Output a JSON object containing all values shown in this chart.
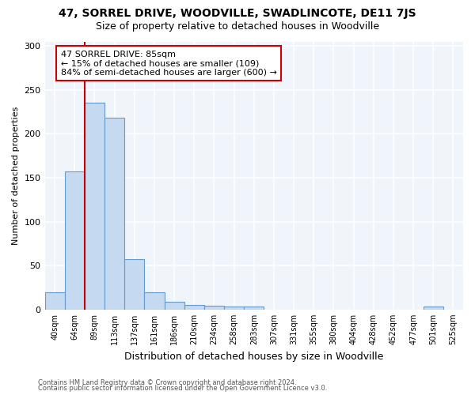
{
  "title1": "47, SORREL DRIVE, WOODVILLE, SWADLINCOTE, DE11 7JS",
  "title2": "Size of property relative to detached houses in Woodville",
  "xlabel": "Distribution of detached houses by size in Woodville",
  "ylabel": "Number of detached properties",
  "categories": [
    "40sqm",
    "64sqm",
    "89sqm",
    "113sqm",
    "137sqm",
    "161sqm",
    "186sqm",
    "210sqm",
    "234sqm",
    "258sqm",
    "283sqm",
    "307sqm",
    "331sqm",
    "355sqm",
    "380sqm",
    "404sqm",
    "428sqm",
    "452sqm",
    "477sqm",
    "501sqm",
    "525sqm"
  ],
  "values": [
    20,
    157,
    235,
    218,
    57,
    20,
    9,
    5,
    4,
    3,
    3,
    0,
    0,
    0,
    0,
    0,
    0,
    0,
    0,
    3,
    0
  ],
  "bar_color": "#c5d9f0",
  "bar_edge_color": "#6699cc",
  "vline_color": "#cc0000",
  "vline_xindex": 2,
  "annotation_text": "47 SORREL DRIVE: 85sqm\n← 15% of detached houses are smaller (109)\n84% of semi-detached houses are larger (600) →",
  "annotation_box_facecolor": "#ffffff",
  "annotation_box_edgecolor": "#cc0000",
  "ylim": [
    0,
    305
  ],
  "yticks": [
    0,
    50,
    100,
    150,
    200,
    250,
    300
  ],
  "footer1": "Contains HM Land Registry data © Crown copyright and database right 2024.",
  "footer2": "Contains public sector information licensed under the Open Government Licence v3.0.",
  "bg_color": "#ffffff",
  "plot_bg_color": "#f0f4fb",
  "title1_fontsize": 10,
  "title2_fontsize": 9,
  "xlabel_fontsize": 9,
  "ylabel_fontsize": 8
}
